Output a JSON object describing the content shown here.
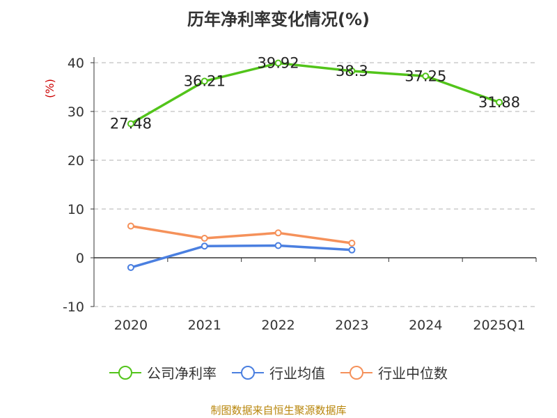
{
  "chart_data": {
    "type": "line",
    "title": "历年净利率变化情况(%)",
    "ylabel": "(%)",
    "categories": [
      "2020",
      "2021",
      "2022",
      "2023",
      "2024",
      "2025Q1"
    ],
    "yticks": [
      40,
      30,
      20,
      10,
      0,
      -10
    ],
    "ylim": [
      -10,
      40
    ],
    "grid": true,
    "legend_position": "bottom",
    "series": [
      {
        "name": "公司净利率",
        "color": "#52c41a",
        "values": [
          27.48,
          36.21,
          39.92,
          38.3,
          37.25,
          31.88
        ],
        "labels": [
          "27.48",
          "36.21",
          "39.92",
          "38.3",
          "37.25",
          "31.88"
        ],
        "show_labels": true
      },
      {
        "name": "行业均值",
        "color": "#4a7fe0",
        "values": [
          -2.0,
          2.4,
          2.5,
          1.6,
          null,
          null
        ],
        "show_labels": false
      },
      {
        "name": "行业中位数",
        "color": "#f5915a",
        "values": [
          6.5,
          4.0,
          5.1,
          3.0,
          null,
          null
        ],
        "show_labels": false
      }
    ]
  },
  "footer": "制图数据来自恒生聚源数据库"
}
